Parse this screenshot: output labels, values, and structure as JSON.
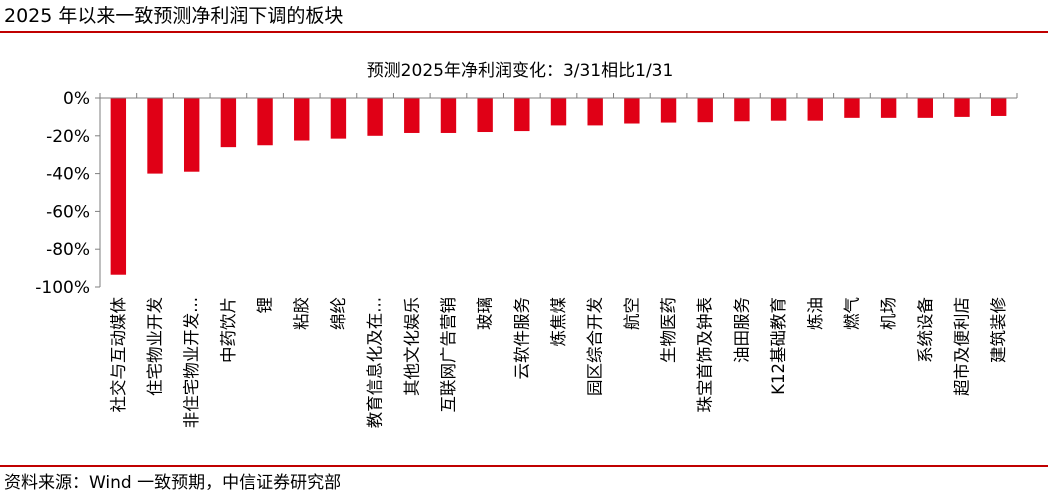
{
  "header": {
    "title": "2025 年以来一致预测净利润下调的板块"
  },
  "footer": {
    "source": "资料来源：Wind 一致预期，中信证券研究部"
  },
  "colors": {
    "bar": "#e00016",
    "rule": "#c00000",
    "axis": "#7f7f7f"
  },
  "chart_data": {
    "type": "bar",
    "title": "预测2025年净利润变化：3/31相比1/31",
    "xlabel": "",
    "ylabel": "",
    "ylim": [
      -100,
      0
    ],
    "yticks": [
      0,
      -20,
      -40,
      -60,
      -80,
      -100
    ],
    "ytick_labels": [
      "0%",
      "-20%",
      "-40%",
      "-60%",
      "-80%",
      "-100%"
    ],
    "grid": false,
    "legend": "none",
    "categories": [
      "社交与互动媒体",
      "住宅物业开发",
      "非住宅物业开发...",
      "中药饮片",
      "锂",
      "粘胶",
      "绵纶",
      "教育信息化及在...",
      "其他文化娱乐",
      "互联网广告营销",
      "玻璃",
      "云软件服务",
      "炼焦煤",
      "园区综合开发",
      "航空",
      "生物医药",
      "珠宝首饰及钟表",
      "油田服务",
      "K12基础教育",
      "炼油",
      "燃气",
      "机场",
      "系统设备",
      "超市及便利店",
      "建筑装修"
    ],
    "values": [
      -93.5,
      -40,
      -39,
      -26,
      -25,
      -22.5,
      -21.5,
      -20,
      -18.5,
      -18.5,
      -18,
      -17.5,
      -14.5,
      -14.5,
      -13.5,
      -13,
      -12.8,
      -12.3,
      -12,
      -12,
      -10.5,
      -10.5,
      -10.5,
      -10,
      -9.5
    ]
  }
}
